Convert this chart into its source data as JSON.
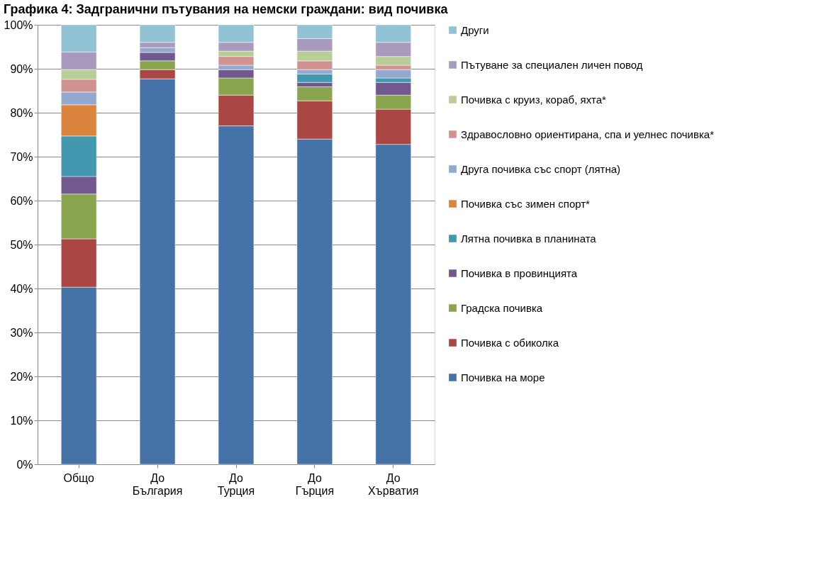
{
  "chart_data": {
    "type": "bar",
    "stacked": true,
    "title": "Графика 4: Задгранични пътувания на немски граждани: вид почивка",
    "categories": [
      "Общо",
      "До България",
      "До Турция",
      "До Гърция",
      "До Хърватия"
    ],
    "series": [
      {
        "name": "Почивка на море",
        "color": "#4572a7",
        "values": [
          40.3,
          87.7,
          77.0,
          74.0,
          72.8
        ]
      },
      {
        "name": "Почивка с обиколка",
        "color": "#aa4643",
        "values": [
          11.0,
          2.1,
          7.0,
          8.7,
          8.0
        ]
      },
      {
        "name": "Градска почивка",
        "color": "#89a54e",
        "values": [
          10.2,
          2.0,
          3.9,
          3.2,
          3.2
        ]
      },
      {
        "name": "Почивка в провинцията",
        "color": "#71588f",
        "values": [
          4.0,
          1.9,
          1.9,
          1.0,
          2.9
        ]
      },
      {
        "name": "Лятна почивка в планината",
        "color": "#4198af",
        "values": [
          9.2,
          null,
          null,
          1.9,
          1.0
        ]
      },
      {
        "name": "Почивка със зимен спорт*",
        "color": "#db843d",
        "values": [
          7.1,
          null,
          null,
          null,
          null
        ]
      },
      {
        "name": "Друга почивка със спорт (лятна)",
        "color": "#93a9cf",
        "values": [
          2.9,
          1.1,
          1.0,
          1.0,
          1.9
        ]
      },
      {
        "name": "Здравословно ориентирана, спа и уелнес почивка*",
        "color": "#d19392",
        "values": [
          2.9,
          null,
          2.0,
          2.0,
          1.0
        ]
      },
      {
        "name": "Почивка с круиз, кораб, яхта*",
        "color": "#b9cd96",
        "values": [
          2.2,
          null,
          1.2,
          2.2,
          2.0
        ]
      },
      {
        "name": "Пътуване за специален личен повод",
        "color": "#a99bbd",
        "values": [
          4.0,
          1.2,
          2.0,
          2.9,
          3.2
        ]
      },
      {
        "name": "Други",
        "color": "#92c3d4",
        "values": [
          6.2,
          4.0,
          4.0,
          3.1,
          4.0
        ]
      }
    ],
    "ylim": [
      0,
      100
    ],
    "yticks": [
      {
        "value": 0,
        "label": "0%"
      },
      {
        "value": 10,
        "label": "10%"
      },
      {
        "value": 20,
        "label": "20%"
      },
      {
        "value": 30,
        "label": "30%"
      },
      {
        "value": 40,
        "label": "40%"
      },
      {
        "value": 50,
        "label": "50%"
      },
      {
        "value": 60,
        "label": "60%"
      },
      {
        "value": 70,
        "label": "70%"
      },
      {
        "value": 80,
        "label": "80%"
      },
      {
        "value": 90,
        "label": "90%"
      },
      {
        "value": 100,
        "label": "100%"
      }
    ],
    "grid": "y",
    "legend": "right"
  }
}
